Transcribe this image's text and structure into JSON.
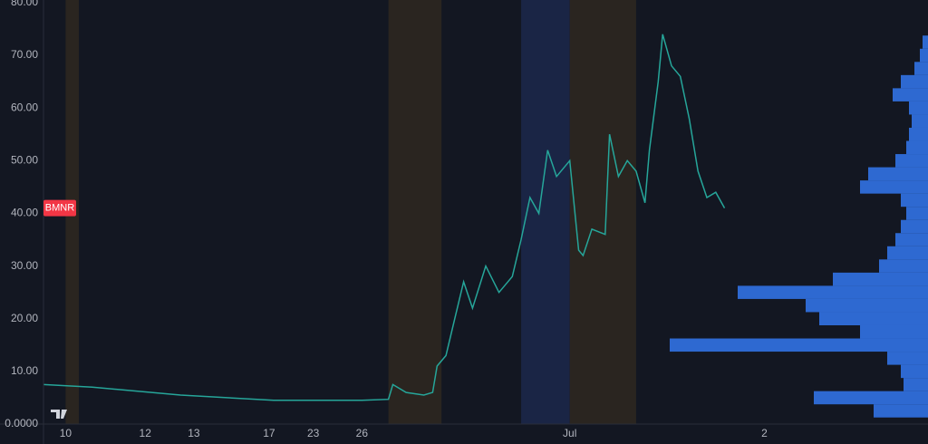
{
  "chart_data": {
    "type": "line",
    "symbol": "BMNR",
    "xlim": [
      0,
      200
    ],
    "xticks": [
      {
        "value": 5,
        "label": "10"
      },
      {
        "value": 23,
        "label": "12"
      },
      {
        "value": 34,
        "label": "13"
      },
      {
        "value": 51,
        "label": "17"
      },
      {
        "value": 61,
        "label": "23"
      },
      {
        "value": 72,
        "label": "26"
      },
      {
        "value": 119,
        "label": "Jul"
      },
      {
        "value": 163,
        "label": "2"
      }
    ],
    "ylim": [
      0,
      80.5
    ],
    "yticks": [
      {
        "value": 0,
        "label": "0.0000"
      },
      {
        "value": 10,
        "label": "10.00"
      },
      {
        "value": 20,
        "label": "20.00"
      },
      {
        "value": 30,
        "label": "30.00"
      },
      {
        "value": 40,
        "label": "40.00"
      },
      {
        "value": 50,
        "label": "50.00"
      },
      {
        "value": 60,
        "label": "60.00"
      },
      {
        "value": 70,
        "label": "70.00"
      },
      {
        "value": 80,
        "label": "80.00"
      }
    ],
    "series": [
      {
        "color": "#26a69a",
        "x": [
          0,
          11,
          31,
          52,
          72,
          78,
          79,
          82,
          86,
          88,
          89,
          91,
          93,
          95,
          97,
          100,
          103,
          106,
          108,
          110,
          112,
          114,
          116,
          119,
          121,
          122,
          124,
          127,
          128,
          130,
          132,
          134,
          136,
          137,
          139,
          140,
          142,
          144,
          146,
          148,
          150,
          152,
          154
        ],
        "values": [
          7.5,
          7,
          5.5,
          4.5,
          4.5,
          4.7,
          7.5,
          6,
          5.5,
          6,
          11,
          13,
          20,
          27,
          22,
          30,
          25,
          28,
          35,
          43,
          40,
          52,
          47,
          50,
          33,
          32,
          37,
          36,
          55,
          47,
          50,
          48,
          42,
          52,
          65,
          74,
          68,
          66,
          58,
          48,
          43,
          44,
          41
        ]
      }
    ],
    "sessions": [
      {
        "start": 5,
        "end": 8,
        "color": "#2a2520"
      },
      {
        "start": 78,
        "end": 90,
        "color": "#2a2520"
      },
      {
        "start": 108,
        "end": 119,
        "color": "#1a2545"
      },
      {
        "start": 119,
        "end": 134,
        "color": "#2a2520"
      }
    ],
    "profile": {
      "color": "#3478f0",
      "xlim": [
        0,
        100
      ],
      "prices": [
        2.5,
        5,
        7.5,
        10,
        12.5,
        15,
        17.5,
        20,
        22.5,
        25,
        27.5,
        30,
        32.5,
        35,
        37.5,
        40,
        42.5,
        45,
        47.5,
        50,
        52.5,
        55,
        57.5,
        60,
        62.5,
        65,
        67.5,
        70,
        72.5
      ],
      "values": [
        20,
        42,
        9,
        10,
        15,
        95,
        25,
        40,
        45,
        70,
        35,
        18,
        15,
        12,
        10,
        8,
        10,
        25,
        22,
        12,
        8,
        7,
        6,
        7,
        13,
        10,
        5,
        3,
        2
      ]
    }
  }
}
